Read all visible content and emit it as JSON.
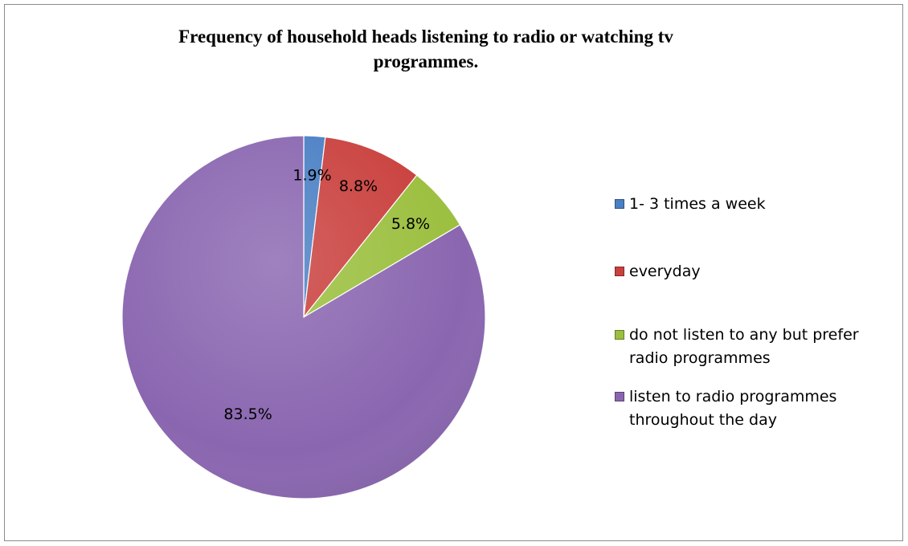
{
  "chart_data": {
    "type": "pie",
    "title": "Frequency of household heads listening to radio or watching tv programmes.",
    "categories": [
      "1- 3 times a week",
      "everyday",
      "do not listen to any but prefer radio programmes",
      "listen to radio programmes throughout the day"
    ],
    "values": [
      1.9,
      8.8,
      5.8,
      83.5
    ],
    "data_labels": [
      "1.9%",
      "8.8%",
      "5.8%",
      "83.5%"
    ],
    "colors": [
      "#4a7fc4",
      "#c9403d",
      "#9bbf3e",
      "#8a66b0"
    ],
    "legend_position": "right"
  }
}
